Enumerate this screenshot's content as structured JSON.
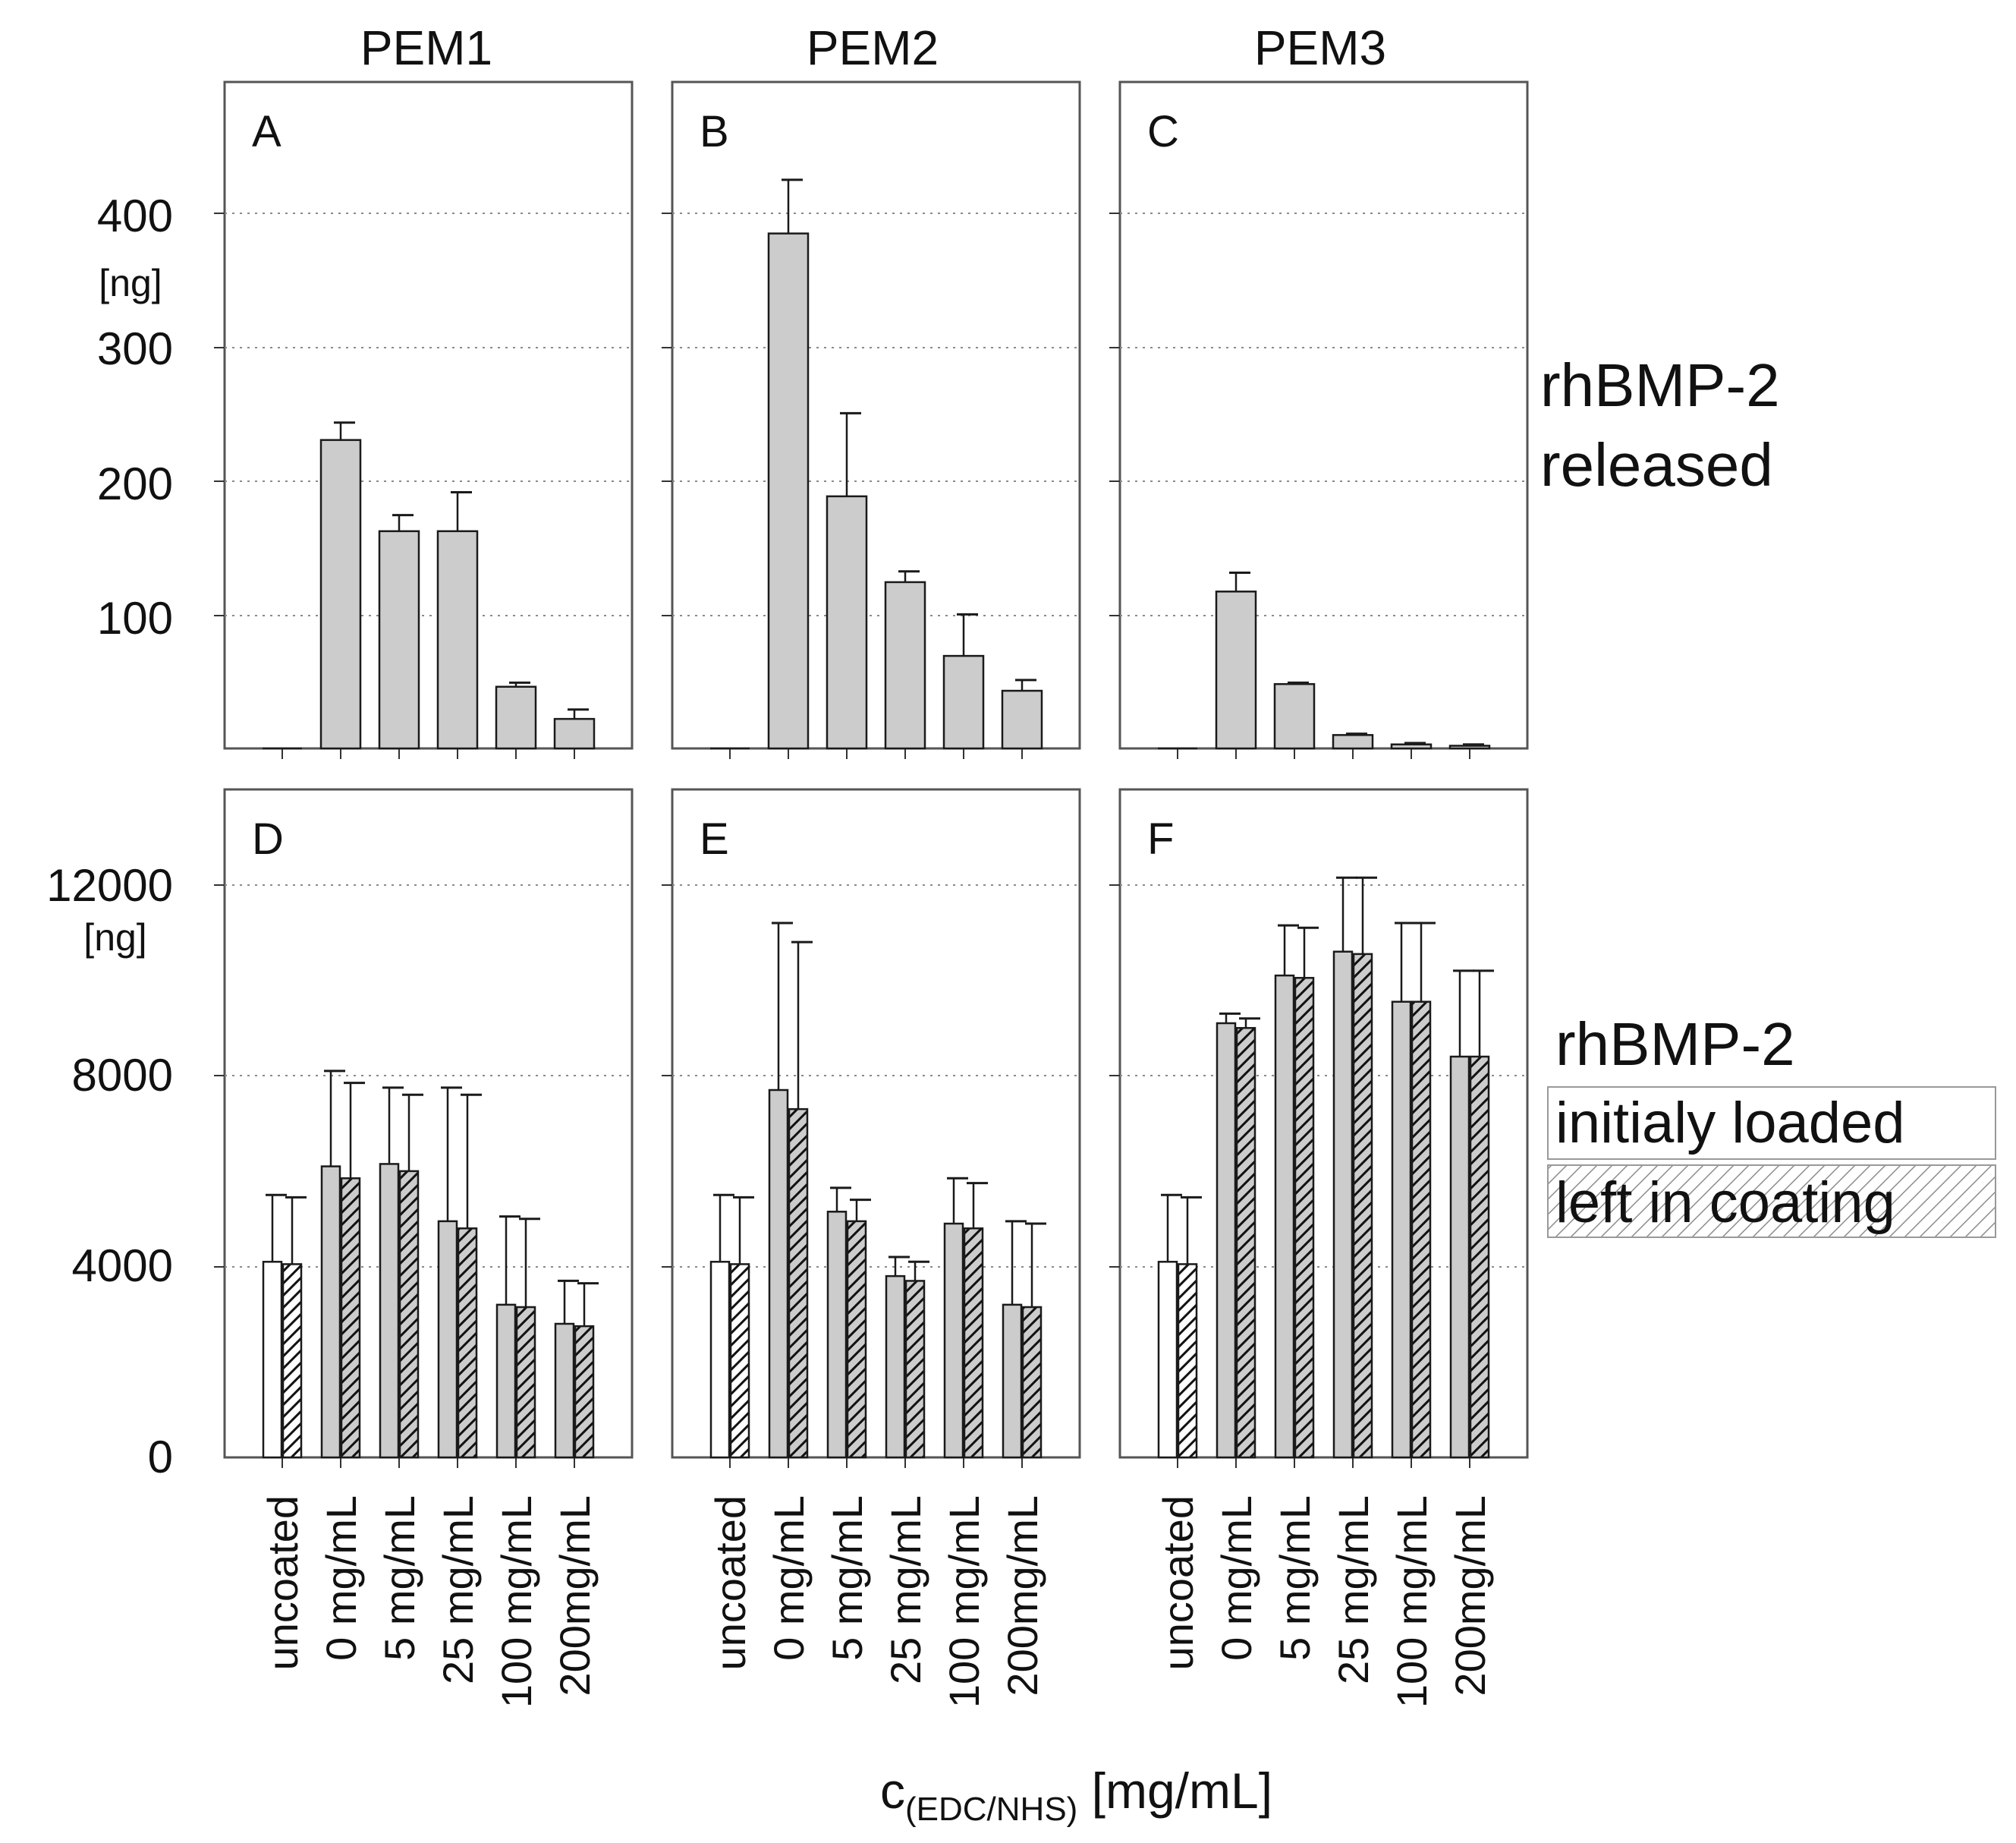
{
  "colors": {
    "bar_filled": "#cccccc",
    "bar_uncoated": "#ffffff",
    "stroke": "#1a1a1a",
    "frame": "#555555",
    "grid": "#8a8a8a"
  },
  "chart_data": {
    "type": "bar",
    "categories": [
      "uncoated",
      "0 mg/mL",
      "5 mg/mL",
      "25 mg/mL",
      "100 mg/mL",
      "200mg/mL"
    ],
    "column_titles": [
      "PEM1",
      "PEM2",
      "PEM3"
    ],
    "xlabel_main": "c",
    "xlabel_sub": "(EDC/NHS)",
    "xlabel_unit": " [mg/mL]",
    "top": {
      "ylim": [
        0,
        500
      ],
      "yticks": [
        "100",
        "200",
        "300",
        "400"
      ],
      "ylabel": "[ng]",
      "row_label": [
        "rhBMP-2",
        "released"
      ],
      "panels": [
        {
          "letter": "A",
          "values": [
            0,
            230,
            162,
            162,
            46,
            22
          ],
          "errors": [
            0,
            13,
            12,
            29,
            3,
            7
          ]
        },
        {
          "letter": "B",
          "values": [
            0,
            384,
            188,
            124,
            69,
            43
          ],
          "errors": [
            0,
            40,
            62,
            8,
            31,
            8
          ]
        },
        {
          "letter": "C",
          "values": [
            0,
            117,
            48,
            10,
            3,
            2
          ],
          "errors": [
            0,
            14,
            1,
            1,
            1,
            1
          ]
        }
      ]
    },
    "bottom": {
      "ylim": [
        0,
        14000
      ],
      "yticks": [
        "0",
        "4000",
        "8000",
        "12000"
      ],
      "ylabel": "[ng]",
      "row_label": "rhBMP-2",
      "legend": [
        "initialy loaded",
        "left in coating"
      ],
      "panels": [
        {
          "letter": "D",
          "series": [
            {
              "name": "initialy loaded",
              "values": [
                4100,
                6100,
                6150,
                4950,
                3200,
                2800
              ],
              "errors": [
                1400,
                2000,
                1600,
                2800,
                1850,
                900
              ]
            },
            {
              "name": "left in coating",
              "values": [
                4050,
                5850,
                6000,
                4800,
                3150,
                2750
              ],
              "errors": [
                1400,
                2000,
                1600,
                2800,
                1850,
                900
              ]
            }
          ]
        },
        {
          "letter": "E",
          "series": [
            {
              "name": "initialy loaded",
              "values": [
                4100,
                7700,
                5150,
                3800,
                4900,
                3200
              ],
              "errors": [
                1400,
                3500,
                500,
                400,
                950,
                1750
              ]
            },
            {
              "name": "left in coating",
              "values": [
                4050,
                7300,
                4950,
                3700,
                4800,
                3150
              ],
              "errors": [
                1400,
                3500,
                450,
                400,
                950,
                1750
              ]
            }
          ]
        },
        {
          "letter": "F",
          "series": [
            {
              "name": "initialy loaded",
              "values": [
                4100,
                9100,
                10100,
                10600,
                9550,
                8400
              ],
              "errors": [
                1400,
                200,
                1050,
                1550,
                1650,
                1800
              ]
            },
            {
              "name": "left in coating",
              "values": [
                4050,
                9000,
                10050,
                10550,
                9550,
                8400
              ],
              "errors": [
                1400,
                200,
                1050,
                1600,
                1650,
                1800
              ]
            }
          ]
        }
      ]
    }
  }
}
